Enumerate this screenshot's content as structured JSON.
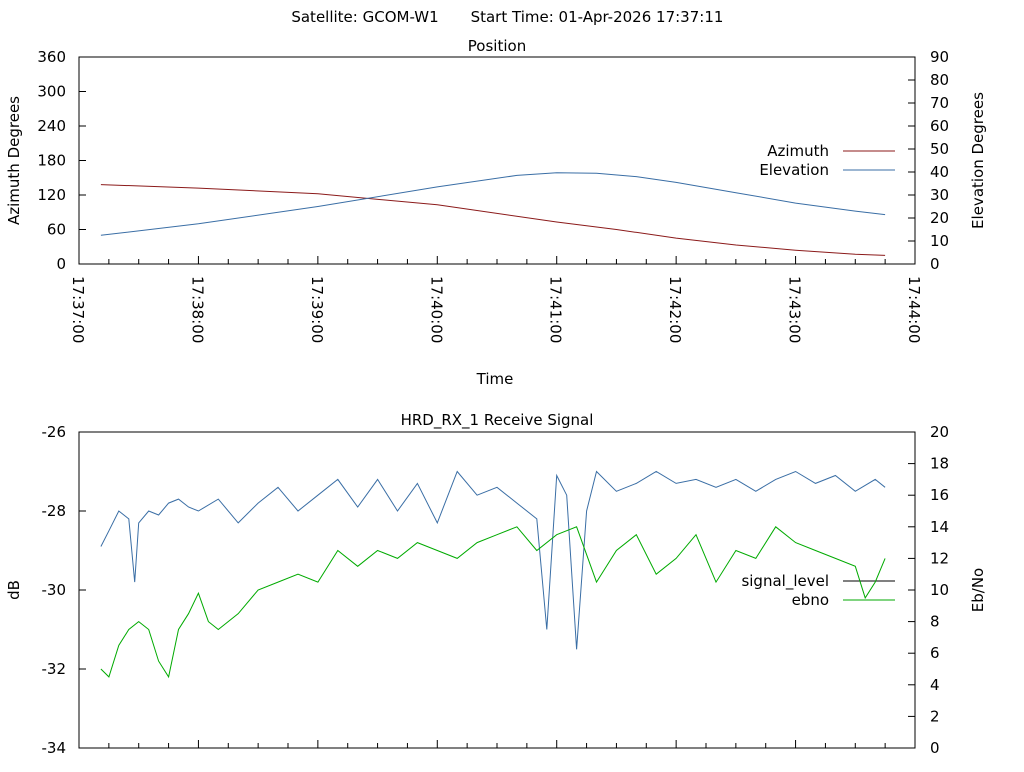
{
  "header": {
    "satellite_label": "Satellite: GCOM-W1",
    "start_time_label": "Start Time: 01-Apr-2026 17:37:11"
  },
  "chart_data": [
    {
      "id": "position",
      "type": "line",
      "title": "Position",
      "xlabel": "Time",
      "ylabel_left": "Azimuth Degrees",
      "ylabel_right": "Elevation Degrees",
      "x_ticks": [
        "17:37:00",
        "17:38:00",
        "17:39:00",
        "17:40:00",
        "17:41:00",
        "17:42:00",
        "17:43:00",
        "17:44:00"
      ],
      "x_range_min": [
        0,
        420
      ],
      "ylim_left": [
        0,
        360
      ],
      "yticks_left": [
        0,
        60,
        120,
        180,
        240,
        300,
        360
      ],
      "ylim_right": [
        0,
        90
      ],
      "yticks_right": [
        0,
        10,
        20,
        30,
        40,
        50,
        60,
        70,
        80,
        90
      ],
      "legend": "right",
      "series": [
        {
          "name": "Azimuth",
          "axis": "left",
          "color": "#8b1a1a",
          "x": [
            11,
            60,
            120,
            180,
            240,
            270,
            300,
            330,
            360,
            390,
            405
          ],
          "values": [
            138,
            132,
            122,
            103,
            73,
            60,
            45,
            33,
            24,
            17,
            15
          ]
        },
        {
          "name": "Elevation",
          "axis": "right",
          "color": "#3a6ea5",
          "x": [
            11,
            60,
            120,
            180,
            220,
            240,
            260,
            280,
            300,
            330,
            360,
            390,
            405
          ],
          "values": [
            12.5,
            17.5,
            25,
            33.5,
            38.5,
            39.7,
            39.5,
            38,
            35.5,
            31,
            26.5,
            23,
            21.5
          ]
        }
      ]
    },
    {
      "id": "receive-signal",
      "type": "line",
      "title": "HRD_RX_1 Receive Signal",
      "xlabel": "",
      "ylabel_left": "dB",
      "ylabel_right": "Eb/No",
      "x_range_min": [
        0,
        420
      ],
      "ylim_left": [
        -34,
        -26
      ],
      "yticks_left": [
        -34,
        -32,
        -30,
        -28,
        -26
      ],
      "ylim_right": [
        0,
        20
      ],
      "yticks_right": [
        0,
        2,
        4,
        6,
        8,
        10,
        12,
        14,
        16,
        18,
        20
      ],
      "legend": "right",
      "series": [
        {
          "name": "signal_level",
          "axis": "left",
          "color": "#3a6ea5",
          "legend_color": "#000000",
          "x": [
            11,
            15,
            20,
            25,
            28,
            30,
            35,
            40,
            45,
            50,
            55,
            60,
            70,
            80,
            90,
            100,
            110,
            120,
            130,
            140,
            150,
            160,
            170,
            180,
            190,
            200,
            210,
            220,
            230,
            235,
            240,
            245,
            250,
            255,
            260,
            270,
            280,
            290,
            300,
            310,
            320,
            330,
            340,
            350,
            360,
            370,
            380,
            390,
            400,
            405
          ],
          "values": [
            -28.9,
            -28.5,
            -28.0,
            -28.2,
            -29.8,
            -28.3,
            -28.0,
            -28.1,
            -27.8,
            -27.7,
            -27.9,
            -28.0,
            -27.7,
            -28.3,
            -27.8,
            -27.4,
            -28.0,
            -27.6,
            -27.2,
            -27.9,
            -27.2,
            -28.0,
            -27.3,
            -28.3,
            -27.0,
            -27.6,
            -27.4,
            -27.8,
            -28.2,
            -31.0,
            -27.1,
            -27.6,
            -31.5,
            -28.0,
            -27.0,
            -27.5,
            -27.3,
            -27.0,
            -27.3,
            -27.2,
            -27.4,
            -27.2,
            -27.5,
            -27.2,
            -27.0,
            -27.3,
            -27.1,
            -27.5,
            -27.2,
            -27.4
          ]
        },
        {
          "name": "ebno",
          "axis": "right",
          "color": "#00aa00",
          "legend_color": "#00aa00",
          "x": [
            11,
            15,
            20,
            25,
            30,
            35,
            40,
            45,
            50,
            55,
            60,
            65,
            70,
            80,
            90,
            100,
            110,
            120,
            130,
            140,
            150,
            160,
            170,
            180,
            190,
            200,
            210,
            220,
            230,
            240,
            250,
            260,
            270,
            280,
            290,
            300,
            310,
            320,
            330,
            340,
            350,
            360,
            370,
            380,
            390,
            395,
            400,
            405
          ],
          "values": [
            5.0,
            4.5,
            6.5,
            7.5,
            8.0,
            7.5,
            5.5,
            4.5,
            7.5,
            8.5,
            9.8,
            8.0,
            7.5,
            8.5,
            10.0,
            10.5,
            11.0,
            10.5,
            12.5,
            11.5,
            12.5,
            12.0,
            13.0,
            12.5,
            12.0,
            13.0,
            13.5,
            14.0,
            12.5,
            13.5,
            14.0,
            10.5,
            12.5,
            13.5,
            11.0,
            12.0,
            13.5,
            10.5,
            12.5,
            12.0,
            14.0,
            13.0,
            12.5,
            12.0,
            11.5,
            9.5,
            10.5,
            12.0
          ]
        }
      ]
    }
  ]
}
